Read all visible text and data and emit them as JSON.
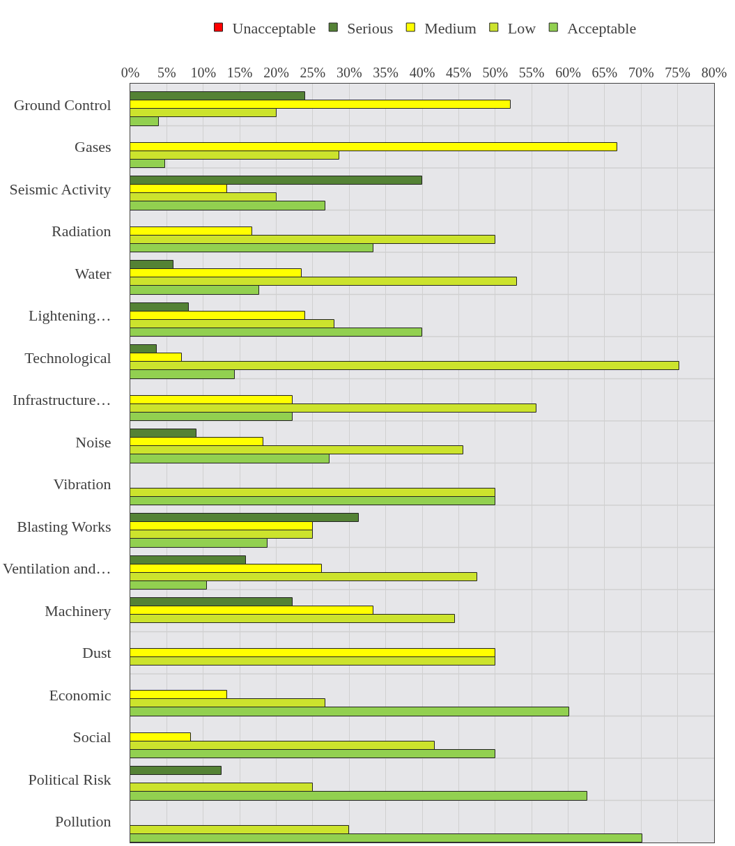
{
  "chart_data": {
    "type": "bar",
    "orientation": "horizontal",
    "categories": [
      "Ground Control",
      "Gases",
      "Seismic Activity",
      "Radiation",
      "Water",
      "Lightening…",
      "Technological",
      "Infrastructure…",
      "Noise",
      "Vibration",
      "Blasting Works",
      "Ventilation and…",
      "Machinery",
      "Dust",
      "Economic",
      "Social",
      "Political Risk",
      "Pollution"
    ],
    "series": [
      {
        "name": "Unacceptable",
        "color": "#ff0000",
        "values": [
          null,
          null,
          null,
          null,
          null,
          null,
          null,
          null,
          null,
          null,
          null,
          null,
          null,
          null,
          null,
          null,
          null,
          null
        ]
      },
      {
        "name": "Serious",
        "color": "#548235",
        "values": [
          24,
          null,
          40,
          null,
          5.9,
          8,
          3.6,
          null,
          9.1,
          null,
          31.3,
          15.8,
          22.2,
          null,
          null,
          null,
          12.5,
          null
        ]
      },
      {
        "name": "Medium",
        "color": "#ffff00",
        "values": [
          52.1,
          66.7,
          13.3,
          16.7,
          23.5,
          24,
          7.1,
          22.2,
          18.2,
          null,
          25,
          26.3,
          33.3,
          50,
          13.3,
          8.3,
          null,
          null
        ]
      },
      {
        "name": "Low",
        "color": "#cce32d",
        "values": [
          20,
          28.6,
          20,
          50,
          53,
          28,
          75.2,
          55.7,
          45.6,
          50,
          25,
          47.5,
          44.5,
          50,
          26.7,
          41.7,
          25,
          30
        ]
      },
      {
        "name": "Acceptable",
        "color": "#92d050",
        "values": [
          3.9,
          4.8,
          26.7,
          33.3,
          17.7,
          40,
          14.3,
          22.2,
          27.3,
          50,
          18.8,
          10.5,
          null,
          null,
          60.1,
          50,
          62.6,
          70.2
        ]
      }
    ],
    "xlim": [
      0,
      80
    ],
    "xticks": [
      {
        "value": 0,
        "label": "0%"
      },
      {
        "value": 5,
        "label": "5%"
      },
      {
        "value": 10,
        "label": "10%"
      },
      {
        "value": 15,
        "label": "15%"
      },
      {
        "value": 20,
        "label": "20%"
      },
      {
        "value": 25,
        "label": "25%"
      },
      {
        "value": 30,
        "label": "30%"
      },
      {
        "value": 35,
        "label": "35%"
      },
      {
        "value": 40,
        "label": "40%"
      },
      {
        "value": 45,
        "label": "45%"
      },
      {
        "value": 50,
        "label": "50%"
      },
      {
        "value": 55,
        "label": "55%"
      },
      {
        "value": 60,
        "label": "60%"
      },
      {
        "value": 65,
        "label": "65%"
      },
      {
        "value": 70,
        "label": "70%"
      },
      {
        "value": 75,
        "label": "75%"
      },
      {
        "value": 80,
        "label": "80%"
      }
    ],
    "grid": true,
    "legend": "top"
  }
}
